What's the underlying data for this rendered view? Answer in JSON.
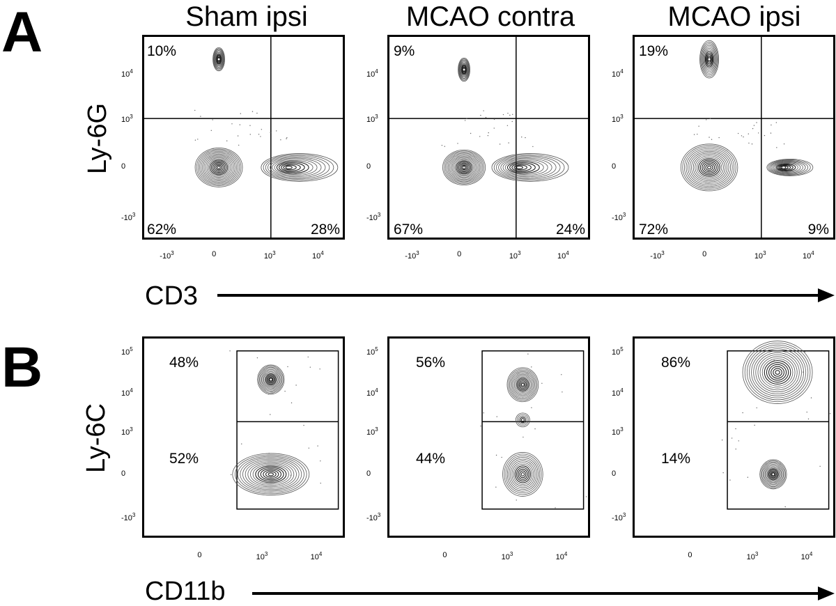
{
  "figure": {
    "panel_a": "A",
    "panel_b": "B",
    "columns": [
      "Sham ipsi",
      "MCAO contra",
      "MCAO ipsi"
    ],
    "a_ylabel": "Ly-6G",
    "a_xlabel": "CD3",
    "b_ylabel": "Ly-6C",
    "b_xlabel": "CD11b",
    "a_yticks": [
      "10^4",
      "10^3",
      "0",
      "-10^3"
    ],
    "a_xticks": [
      "-10^3",
      "0",
      "10^3",
      "10^4"
    ],
    "b_yticks": [
      "10^5",
      "10^4",
      "10^3",
      "0",
      "-10^3"
    ],
    "b_xticks": [
      "0",
      "10^3",
      "10^4"
    ]
  },
  "chart_data": [
    {
      "type": "contour",
      "panel": "A",
      "title": "Sham ipsi",
      "xlabel": "CD3",
      "ylabel": "Ly-6G",
      "quadrants": {
        "upper_left": "10%",
        "lower_left": "62%",
        "lower_right": "28%"
      },
      "populations": [
        {
          "x": 0,
          "y": 20000,
          "spread": 0.5
        },
        {
          "x": 0,
          "y": 0,
          "spread": 1.0
        },
        {
          "x": 4000,
          "y": 0,
          "spread": 1.0
        }
      ]
    },
    {
      "type": "contour",
      "panel": "A",
      "title": "MCAO contra",
      "xlabel": "CD3",
      "ylabel": "Ly-6G",
      "quadrants": {
        "upper_left": "9%",
        "lower_left": "67%",
        "lower_right": "24%"
      },
      "populations": [
        {
          "x": 0,
          "y": 12000,
          "spread": 0.5
        },
        {
          "x": 0,
          "y": 0,
          "spread": 0.9
        },
        {
          "x": 2000,
          "y": 0,
          "spread": 1.0
        }
      ]
    },
    {
      "type": "contour",
      "panel": "A",
      "title": "MCAO ipsi",
      "xlabel": "CD3",
      "ylabel": "Ly-6G",
      "quadrants": {
        "upper_left": "19%",
        "lower_left": "72%",
        "lower_right": "9%"
      },
      "populations": [
        {
          "x": 0,
          "y": 20000,
          "spread": 0.8
        },
        {
          "x": 0,
          "y": 0,
          "spread": 1.2
        },
        {
          "x": 4000,
          "y": 0,
          "spread": 0.6
        }
      ]
    },
    {
      "type": "contour",
      "panel": "B",
      "title": "Sham ipsi",
      "xlabel": "CD11b",
      "ylabel": "Ly-6C",
      "gates": {
        "high": "48%",
        "low": "52%"
      },
      "populations": [
        {
          "x": 1500,
          "y": 20000,
          "spread": 0.6
        },
        {
          "x": 1500,
          "y": 0,
          "spread": 1.2
        }
      ]
    },
    {
      "type": "contour",
      "panel": "B",
      "title": "MCAO contra",
      "xlabel": "CD11b",
      "ylabel": "Ly-6C",
      "gates": {
        "high": "56%",
        "low": "44%"
      },
      "populations": [
        {
          "x": 2000,
          "y": 15000,
          "spread": 0.7
        },
        {
          "x": 2000,
          "y": 2000,
          "spread": 0.3
        },
        {
          "x": 2000,
          "y": 0,
          "spread": 0.9
        }
      ]
    },
    {
      "type": "contour",
      "panel": "B",
      "title": "MCAO ipsi",
      "xlabel": "CD11b",
      "ylabel": "Ly-6C",
      "gates": {
        "high": "86%",
        "low": "14%"
      },
      "populations": [
        {
          "x": 3000,
          "y": 30000,
          "spread": 1.0
        },
        {
          "x": 2500,
          "y": 0,
          "spread": 0.6
        }
      ]
    }
  ]
}
